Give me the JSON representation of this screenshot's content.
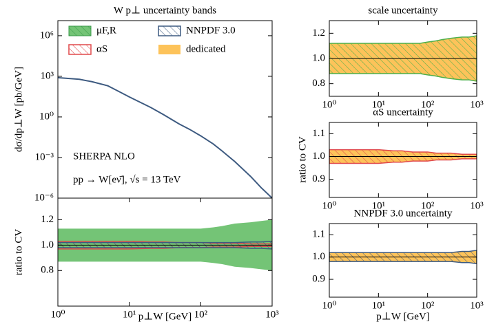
{
  "chart_data": [
    {
      "type": "line",
      "title": "W p⊥ uncertainty bands",
      "ylabel": "dσ/dp⊥W [pb/GeV]",
      "log_x": true,
      "log_y": true,
      "color": "#3d5a80",
      "x": [
        1,
        2,
        3,
        5,
        7,
        10,
        20,
        30,
        50,
        70,
        100,
        150,
        200,
        300,
        500,
        700,
        1000
      ],
      "values": [
        800,
        600,
        400,
        200,
        80,
        30,
        5,
        1.5,
        0.3,
        0.12,
        0.04,
        0.01,
        0.003,
        0.0005,
        4e-05,
        6e-06,
        1e-06
      ],
      "xlim": [
        1,
        1000
      ],
      "ylim": [
        1e-06,
        13000000
      ],
      "yticks": [
        {
          "value": 1e-06,
          "label": "10⁻⁶"
        },
        {
          "value": 0.001,
          "label": "10⁻³"
        },
        {
          "value": 1,
          "label": "10⁰"
        },
        {
          "value": 1000,
          "label": "10³"
        },
        {
          "value": 1000000,
          "label": "10⁶"
        }
      ],
      "annotations": [
        "SHERPA NLO",
        "pp → W[eν̄], √s = 13 TeV"
      ]
    },
    {
      "type": "band",
      "ylabel": "ratio to CV",
      "xlabel": "p⊥W [GeV]",
      "log_x": true,
      "x": [
        1,
        2,
        3,
        5,
        7,
        10,
        20,
        30,
        50,
        70,
        100,
        150,
        200,
        300,
        500,
        700,
        1000
      ],
      "xlim": [
        1,
        1000
      ],
      "ylim": [
        0.52,
        1.37
      ],
      "reference": 1,
      "reference_color": "#000000",
      "xticks": [
        {
          "value": 1,
          "label": "10⁰"
        },
        {
          "value": 10,
          "label": "10¹"
        },
        {
          "value": 100,
          "label": "10²"
        },
        {
          "value": 1000,
          "label": "10³"
        }
      ],
      "yticks": [
        0.8,
        {
          "value": 1,
          "label": "1.0"
        },
        1.2
      ],
      "series": [
        {
          "name": "μF,R",
          "color": "#74c476",
          "style": "filled",
          "upper": [
            1.13,
            1.13,
            1.13,
            1.13,
            1.13,
            1.13,
            1.13,
            1.13,
            1.13,
            1.13,
            1.13,
            1.14,
            1.15,
            1.17,
            1.18,
            1.19,
            1.2
          ],
          "lower": [
            0.87,
            0.87,
            0.87,
            0.87,
            0.87,
            0.87,
            0.87,
            0.87,
            0.87,
            0.87,
            0.87,
            0.86,
            0.85,
            0.83,
            0.82,
            0.81,
            0.8
          ]
        },
        {
          "name": "αS",
          "color": "#e0484a",
          "style": "hatched",
          "upper": [
            1.03,
            1.03,
            1.03,
            1.03,
            1.03,
            1.03,
            1.025,
            1.025,
            1.02,
            1.02,
            1.02,
            1.015,
            1.015,
            1.015,
            1.01,
            1.01,
            1.01
          ],
          "lower": [
            0.97,
            0.97,
            0.97,
            0.97,
            0.97,
            0.97,
            0.975,
            0.975,
            0.98,
            0.98,
            0.98,
            0.985,
            0.985,
            0.985,
            0.99,
            0.99,
            0.99
          ]
        },
        {
          "name": "NNPDF 3.0",
          "color": "#3d5a80",
          "style": "hatched",
          "upper": [
            1.02,
            1.02,
            1.02,
            1.02,
            1.02,
            1.02,
            1.02,
            1.02,
            1.02,
            1.02,
            1.02,
            1.02,
            1.02,
            1.02,
            1.025,
            1.025,
            1.03
          ],
          "lower": [
            0.98,
            0.98,
            0.98,
            0.98,
            0.98,
            0.98,
            0.98,
            0.98,
            0.98,
            0.98,
            0.98,
            0.98,
            0.98,
            0.98,
            0.975,
            0.975,
            0.97
          ]
        }
      ],
      "legend_extra": {
        "name": "dedicated",
        "color": "#fdc35a"
      }
    },
    {
      "type": "band",
      "title": "scale uncertainty",
      "log_x": true,
      "x": [
        1,
        2,
        3,
        5,
        7,
        10,
        20,
        30,
        50,
        70,
        100,
        150,
        200,
        300,
        500,
        700,
        1000
      ],
      "xlim": [
        1,
        1000
      ],
      "ylim": [
        0.7,
        1.3
      ],
      "reference": 1,
      "reference_color": "#000000",
      "xticks": [
        {
          "value": 1,
          "label": "10⁰"
        },
        {
          "value": 10,
          "label": "10¹"
        },
        {
          "value": 100,
          "label": "10²"
        },
        {
          "value": 1000,
          "label": "10³"
        }
      ],
      "yticks": [
        0.8,
        {
          "value": 1,
          "label": "1.0"
        },
        1.2
      ],
      "series": [
        {
          "color": "#4daf4a",
          "fill": "#fdc35a",
          "style": "dedicated",
          "upper": [
            1.12,
            1.12,
            1.12,
            1.12,
            1.12,
            1.12,
            1.12,
            1.12,
            1.12,
            1.12,
            1.13,
            1.14,
            1.15,
            1.16,
            1.17,
            1.17,
            1.18
          ],
          "lower": [
            0.88,
            0.88,
            0.88,
            0.88,
            0.88,
            0.88,
            0.88,
            0.88,
            0.88,
            0.88,
            0.87,
            0.86,
            0.85,
            0.84,
            0.83,
            0.83,
            0.82
          ]
        }
      ]
    },
    {
      "type": "band",
      "title": "αS uncertainty",
      "ylabel": "ratio to CV",
      "log_x": true,
      "x": [
        1,
        2,
        3,
        5,
        7,
        10,
        20,
        30,
        50,
        70,
        100,
        150,
        200,
        300,
        500,
        700,
        1000
      ],
      "xlim": [
        1,
        1000
      ],
      "ylim": [
        0.82,
        1.15
      ],
      "reference": 1,
      "reference_color": "#000000",
      "xticks": [
        {
          "value": 1,
          "label": "10⁰"
        },
        {
          "value": 10,
          "label": "10¹"
        },
        {
          "value": 100,
          "label": "10²"
        },
        {
          "value": 1000,
          "label": "10³"
        }
      ],
      "yticks": [
        0.9,
        {
          "value": 1,
          "label": "1.0"
        },
        1.1
      ],
      "series": [
        {
          "color": "#e0484a",
          "fill": "#fdc35a",
          "style": "dedicated",
          "upper": [
            1.03,
            1.03,
            1.03,
            1.03,
            1.03,
            1.03,
            1.025,
            1.025,
            1.02,
            1.02,
            1.02,
            1.015,
            1.015,
            1.015,
            1.01,
            1.01,
            1.01
          ],
          "lower": [
            0.97,
            0.97,
            0.97,
            0.97,
            0.97,
            0.97,
            0.975,
            0.975,
            0.98,
            0.98,
            0.98,
            0.985,
            0.985,
            0.985,
            0.99,
            0.99,
            0.99
          ]
        }
      ]
    },
    {
      "type": "band",
      "title": "NNPDF 3.0 uncertainty",
      "xlabel": "p⊥W [GeV]",
      "log_x": true,
      "x": [
        1,
        2,
        3,
        5,
        7,
        10,
        20,
        30,
        50,
        70,
        100,
        150,
        200,
        300,
        500,
        700,
        1000
      ],
      "xlim": [
        1,
        1000
      ],
      "ylim": [
        0.82,
        1.15
      ],
      "reference": 1,
      "reference_color": "#000000",
      "xticks": [
        {
          "value": 1,
          "label": "10⁰"
        },
        {
          "value": 10,
          "label": "10¹"
        },
        {
          "value": 100,
          "label": "10²"
        },
        {
          "value": 1000,
          "label": "10³"
        }
      ],
      "yticks": [
        0.9,
        {
          "value": 1,
          "label": "1.0"
        },
        1.1
      ],
      "series": [
        {
          "color": "#3d5a80",
          "fill": "#fdc35a",
          "style": "dedicated",
          "upper": [
            1.02,
            1.02,
            1.02,
            1.02,
            1.02,
            1.02,
            1.02,
            1.02,
            1.02,
            1.02,
            1.02,
            1.02,
            1.02,
            1.02,
            1.025,
            1.025,
            1.03
          ],
          "lower": [
            0.98,
            0.98,
            0.98,
            0.98,
            0.98,
            0.98,
            0.98,
            0.98,
            0.98,
            0.98,
            0.98,
            0.98,
            0.98,
            0.98,
            0.975,
            0.975,
            0.97
          ]
        }
      ]
    }
  ]
}
